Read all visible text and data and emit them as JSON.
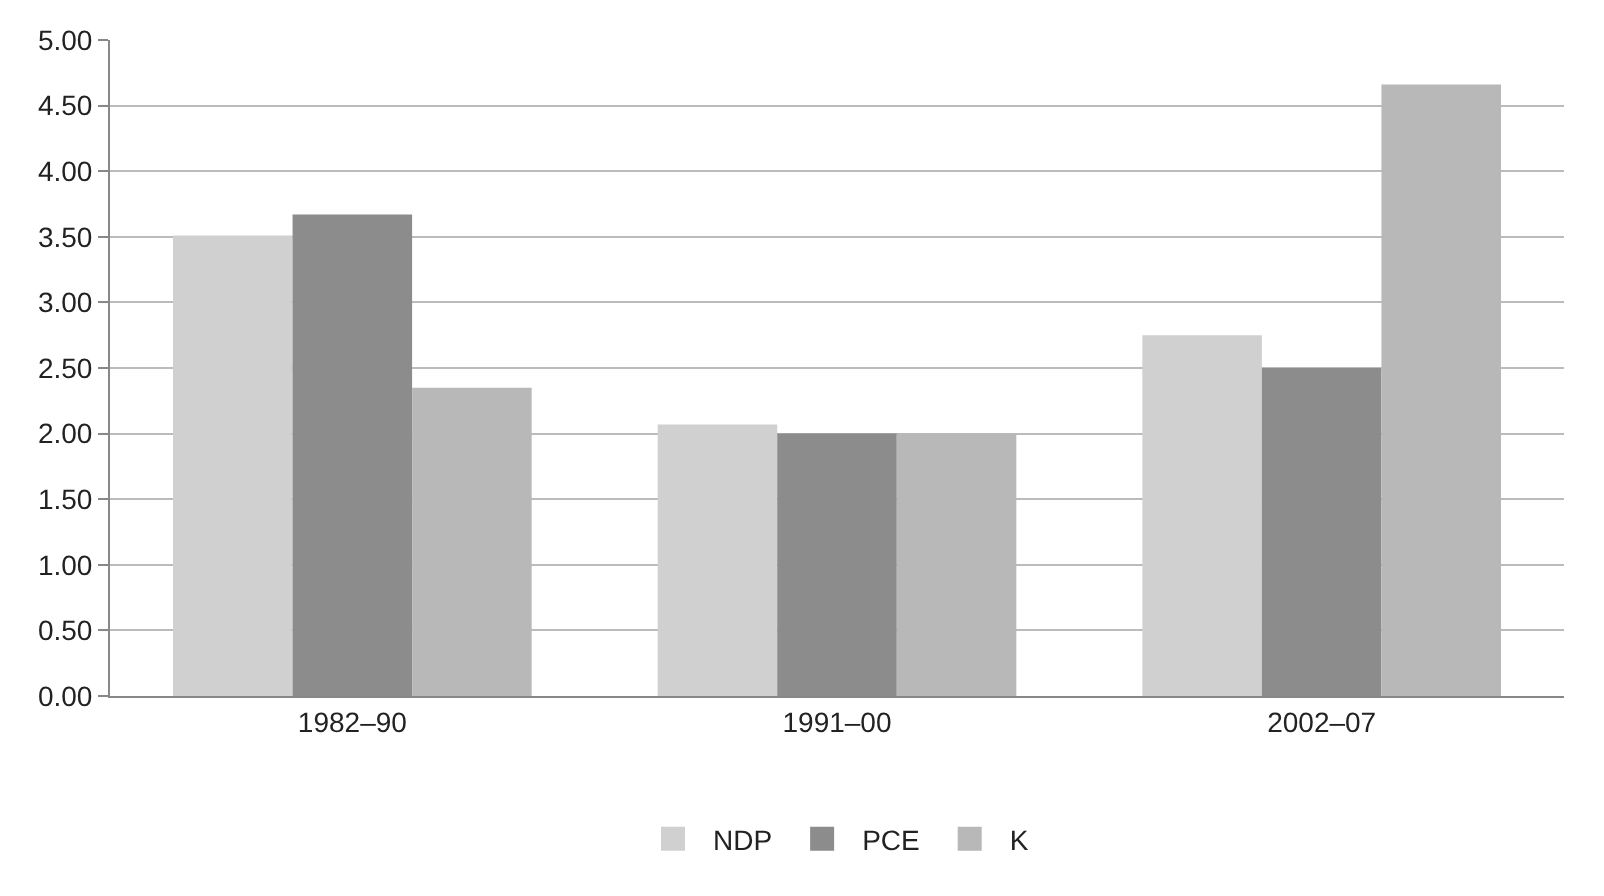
{
  "chart_data": {
    "type": "bar",
    "categories": [
      "1982–90",
      "1991–00",
      "2002–07"
    ],
    "series": [
      {
        "name": "NDP",
        "color": "#d0d0d0",
        "values": [
          3.51,
          2.07,
          2.75
        ]
      },
      {
        "name": "PCE",
        "color": "#8c8c8c",
        "values": [
          3.67,
          2.0,
          2.5
        ]
      },
      {
        "name": "K",
        "color": "#b8b8b8",
        "values": [
          2.35,
          2.0,
          4.66
        ]
      }
    ],
    "ylim": [
      0,
      5
    ],
    "yticks": [
      {
        "value": 0,
        "label": "0.00"
      },
      {
        "value": 0.5,
        "label": "0.50"
      },
      {
        "value": 1,
        "label": "1.00"
      },
      {
        "value": 1.5,
        "label": "1.50"
      },
      {
        "value": 2,
        "label": "2.00"
      },
      {
        "value": 2.5,
        "label": "2.50"
      },
      {
        "value": 3,
        "label": "3.00"
      },
      {
        "value": 3.5,
        "label": "3.50"
      },
      {
        "value": 4,
        "label": "4.00"
      },
      {
        "value": 4.5,
        "label": "4.50"
      },
      {
        "value": 5,
        "label": "5.00"
      }
    ],
    "grid": "y",
    "legend": "bottom"
  }
}
